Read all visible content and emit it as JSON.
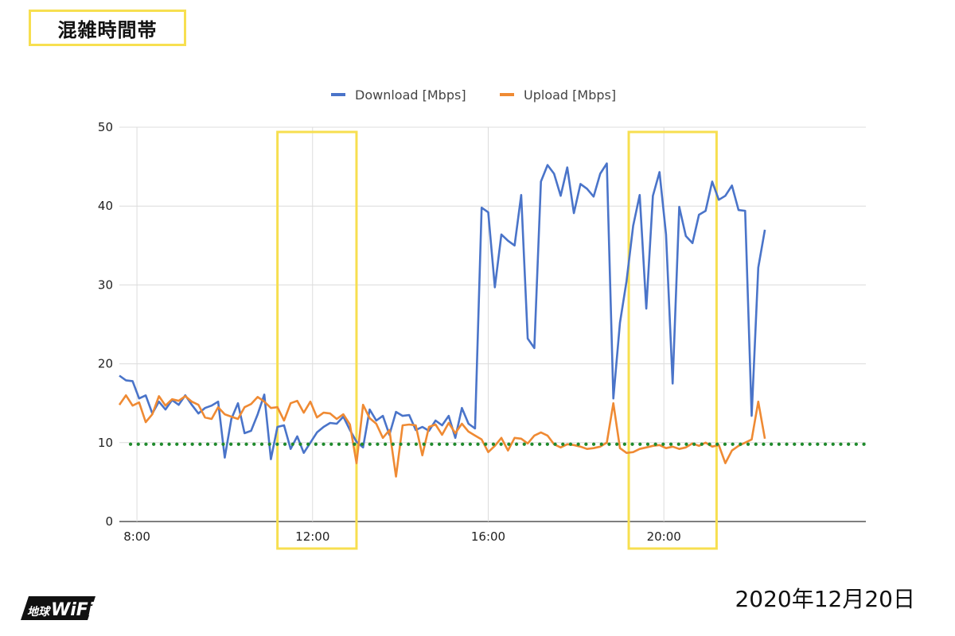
{
  "header": {
    "badge_label": "混雑時間帯"
  },
  "footer": {
    "date": "2020年12月20日"
  },
  "logo": {
    "text": "地球WiFi",
    "icon": "chikyu-wifi-logo"
  },
  "colors": {
    "download": "#4a74c9",
    "upload": "#ef8a33",
    "threshold": "#1f8a2c",
    "highlight": "#f7df50",
    "grid": "#dcdcdc"
  },
  "chart_data": {
    "type": "line",
    "title": "",
    "xlabel": "",
    "ylabel": "",
    "xlim": [
      7.6,
      24.6
    ],
    "ylim": [
      0,
      50
    ],
    "y_ticks": [
      0,
      10,
      20,
      30,
      40,
      50
    ],
    "x_ticks": [
      {
        "value": 8,
        "label": "8:00"
      },
      {
        "value": 12,
        "label": "12:00"
      },
      {
        "value": 16,
        "label": "16:00"
      },
      {
        "value": 20,
        "label": "20:00"
      }
    ],
    "grid": true,
    "legend_position": "top",
    "threshold_line": 9.8,
    "highlight_ranges": [
      [
        11.2,
        13.0
      ],
      [
        19.2,
        21.2
      ]
    ],
    "series": [
      {
        "name": "Download [Mbps]",
        "points": [
          [
            7.6,
            18.5
          ],
          [
            7.75,
            17.9
          ],
          [
            7.9,
            17.8
          ],
          [
            8.05,
            15.6
          ],
          [
            8.2,
            16.0
          ],
          [
            8.35,
            13.7
          ],
          [
            8.5,
            15.2
          ],
          [
            8.65,
            14.2
          ],
          [
            8.8,
            15.4
          ],
          [
            8.95,
            14.8
          ],
          [
            9.1,
            16.0
          ],
          [
            9.25,
            14.8
          ],
          [
            9.4,
            13.7
          ],
          [
            9.55,
            14.4
          ],
          [
            9.7,
            14.7
          ],
          [
            9.85,
            15.2
          ],
          [
            10.0,
            8.1
          ],
          [
            10.15,
            13.0
          ],
          [
            10.3,
            15.0
          ],
          [
            10.45,
            11.2
          ],
          [
            10.6,
            11.5
          ],
          [
            10.75,
            13.6
          ],
          [
            10.9,
            16.1
          ],
          [
            11.05,
            7.9
          ],
          [
            11.2,
            12.0
          ],
          [
            11.35,
            12.2
          ],
          [
            11.5,
            9.2
          ],
          [
            11.65,
            10.8
          ],
          [
            11.8,
            8.7
          ],
          [
            11.95,
            10.0
          ],
          [
            12.1,
            11.3
          ],
          [
            12.25,
            12.0
          ],
          [
            12.4,
            12.5
          ],
          [
            12.55,
            12.4
          ],
          [
            12.7,
            13.3
          ],
          [
            12.85,
            11.6
          ],
          [
            13.0,
            10.1
          ],
          [
            13.15,
            9.4
          ],
          [
            13.3,
            14.2
          ],
          [
            13.45,
            12.8
          ],
          [
            13.6,
            13.4
          ],
          [
            13.75,
            11.0
          ],
          [
            13.9,
            13.9
          ],
          [
            14.05,
            13.4
          ],
          [
            14.2,
            13.5
          ],
          [
            14.35,
            11.6
          ],
          [
            14.5,
            12.0
          ],
          [
            14.65,
            11.5
          ],
          [
            14.8,
            12.8
          ],
          [
            14.95,
            12.2
          ],
          [
            15.1,
            13.4
          ],
          [
            15.25,
            10.6
          ],
          [
            15.4,
            14.4
          ],
          [
            15.55,
            12.4
          ],
          [
            15.7,
            11.8
          ],
          [
            15.85,
            39.8
          ],
          [
            16.0,
            39.2
          ],
          [
            16.15,
            29.7
          ],
          [
            16.3,
            36.4
          ],
          [
            16.45,
            35.6
          ],
          [
            16.6,
            35.0
          ],
          [
            16.75,
            41.4
          ],
          [
            16.9,
            23.2
          ],
          [
            17.05,
            22.0
          ],
          [
            17.2,
            43.1
          ],
          [
            17.35,
            45.2
          ],
          [
            17.5,
            44.1
          ],
          [
            17.65,
            41.3
          ],
          [
            17.8,
            44.9
          ],
          [
            17.95,
            39.1
          ],
          [
            18.1,
            42.8
          ],
          [
            18.25,
            42.2
          ],
          [
            18.4,
            41.2
          ],
          [
            18.55,
            44.1
          ],
          [
            18.7,
            45.4
          ],
          [
            18.85,
            15.6
          ],
          [
            19.0,
            25.2
          ],
          [
            19.15,
            30.5
          ],
          [
            19.3,
            37.5
          ],
          [
            19.45,
            41.4
          ],
          [
            19.6,
            27.0
          ],
          [
            19.75,
            41.3
          ],
          [
            19.9,
            44.3
          ],
          [
            20.05,
            36.4
          ],
          [
            20.2,
            17.5
          ],
          [
            20.35,
            39.9
          ],
          [
            20.5,
            36.2
          ],
          [
            20.65,
            35.3
          ],
          [
            20.8,
            38.9
          ],
          [
            20.95,
            39.4
          ],
          [
            21.1,
            43.1
          ],
          [
            21.25,
            40.8
          ],
          [
            21.4,
            41.3
          ],
          [
            21.55,
            42.6
          ],
          [
            21.7,
            39.5
          ],
          [
            21.85,
            39.4
          ],
          [
            22.0,
            13.4
          ],
          [
            22.15,
            32.2
          ],
          [
            22.3,
            37.0
          ]
        ]
      },
      {
        "name": "Upload [Mbps]",
        "points": [
          [
            7.6,
            14.8
          ],
          [
            7.75,
            16.0
          ],
          [
            7.9,
            14.7
          ],
          [
            8.05,
            15.1
          ],
          [
            8.2,
            12.6
          ],
          [
            8.35,
            13.6
          ],
          [
            8.5,
            15.9
          ],
          [
            8.65,
            14.7
          ],
          [
            8.8,
            15.5
          ],
          [
            8.95,
            15.3
          ],
          [
            9.1,
            15.9
          ],
          [
            9.25,
            15.2
          ],
          [
            9.4,
            14.8
          ],
          [
            9.55,
            13.2
          ],
          [
            9.7,
            13.0
          ],
          [
            9.85,
            14.5
          ],
          [
            10.0,
            13.6
          ],
          [
            10.15,
            13.3
          ],
          [
            10.3,
            13.0
          ],
          [
            10.45,
            14.5
          ],
          [
            10.6,
            14.9
          ],
          [
            10.75,
            15.8
          ],
          [
            10.9,
            15.2
          ],
          [
            11.05,
            14.4
          ],
          [
            11.2,
            14.5
          ],
          [
            11.35,
            12.8
          ],
          [
            11.5,
            15.0
          ],
          [
            11.65,
            15.3
          ],
          [
            11.8,
            13.8
          ],
          [
            11.95,
            15.2
          ],
          [
            12.1,
            13.2
          ],
          [
            12.25,
            13.8
          ],
          [
            12.4,
            13.7
          ],
          [
            12.55,
            13.0
          ],
          [
            12.7,
            13.6
          ],
          [
            12.85,
            12.3
          ],
          [
            13.0,
            7.4
          ],
          [
            13.15,
            14.8
          ],
          [
            13.3,
            13.1
          ],
          [
            13.45,
            12.4
          ],
          [
            13.6,
            10.6
          ],
          [
            13.75,
            11.6
          ],
          [
            13.9,
            5.7
          ],
          [
            14.05,
            12.2
          ],
          [
            14.2,
            12.3
          ],
          [
            14.35,
            12.2
          ],
          [
            14.5,
            8.4
          ],
          [
            14.65,
            12.0
          ],
          [
            14.8,
            12.3
          ],
          [
            14.95,
            11.0
          ],
          [
            15.1,
            12.5
          ],
          [
            15.25,
            11.2
          ],
          [
            15.4,
            12.4
          ],
          [
            15.55,
            11.4
          ],
          [
            15.7,
            10.9
          ],
          [
            15.85,
            10.4
          ],
          [
            16.0,
            8.8
          ],
          [
            16.15,
            9.6
          ],
          [
            16.3,
            10.6
          ],
          [
            16.45,
            9.0
          ],
          [
            16.6,
            10.6
          ],
          [
            16.75,
            10.5
          ],
          [
            16.9,
            9.9
          ],
          [
            17.05,
            10.9
          ],
          [
            17.2,
            11.3
          ],
          [
            17.35,
            10.9
          ],
          [
            17.5,
            9.8
          ],
          [
            17.65,
            9.4
          ],
          [
            17.8,
            9.8
          ],
          [
            17.95,
            9.7
          ],
          [
            18.1,
            9.5
          ],
          [
            18.25,
            9.2
          ],
          [
            18.4,
            9.3
          ],
          [
            18.55,
            9.5
          ],
          [
            18.7,
            10.0
          ],
          [
            18.85,
            15.0
          ],
          [
            19.0,
            9.3
          ],
          [
            19.15,
            8.7
          ],
          [
            19.3,
            8.8
          ],
          [
            19.45,
            9.2
          ],
          [
            19.6,
            9.4
          ],
          [
            19.75,
            9.6
          ],
          [
            19.9,
            9.7
          ],
          [
            20.05,
            9.3
          ],
          [
            20.2,
            9.5
          ],
          [
            20.35,
            9.2
          ],
          [
            20.5,
            9.4
          ],
          [
            20.65,
            9.9
          ],
          [
            20.8,
            9.6
          ],
          [
            20.95,
            10.0
          ],
          [
            21.1,
            9.5
          ],
          [
            21.25,
            9.7
          ],
          [
            21.4,
            7.4
          ],
          [
            21.55,
            9.0
          ],
          [
            21.7,
            9.6
          ],
          [
            21.85,
            10.0
          ],
          [
            22.0,
            10.4
          ],
          [
            22.15,
            15.2
          ],
          [
            22.3,
            10.5
          ]
        ]
      }
    ]
  }
}
